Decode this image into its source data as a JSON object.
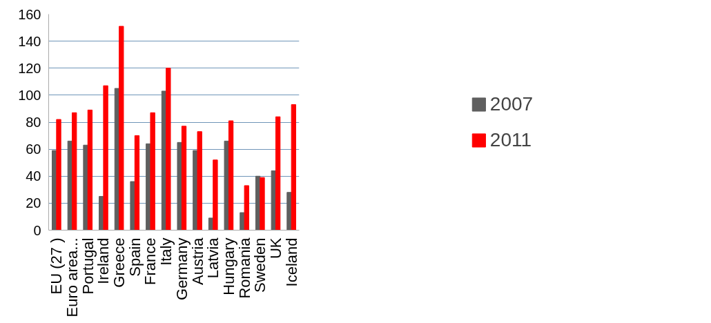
{
  "chart_data": {
    "type": "bar",
    "categories": [
      "EU (27 )",
      "Euro area...",
      "Portugal",
      "Ireland",
      "Greece",
      "Spain",
      "France",
      "Italy",
      "Germany",
      "Austria",
      "Latvia",
      "Hungary",
      "Romania",
      "Sweden",
      "UK",
      "Iceland"
    ],
    "series": [
      {
        "name": "2007",
        "color": "#5f5f5f",
        "values": [
          59,
          66,
          63,
          25,
          105,
          36,
          64,
          103,
          65,
          59,
          9,
          66,
          13,
          40,
          44,
          28
        ]
      },
      {
        "name": "2011",
        "color": "#ff0000",
        "values": [
          82,
          87,
          89,
          107,
          151,
          70,
          87,
          120,
          77,
          73,
          52,
          81,
          33,
          39,
          84,
          93
        ]
      }
    ],
    "ylim": [
      0,
      160
    ],
    "yticks": [
      0,
      20,
      40,
      60,
      80,
      100,
      120,
      140,
      160
    ],
    "grid": "y",
    "legend": "right"
  }
}
